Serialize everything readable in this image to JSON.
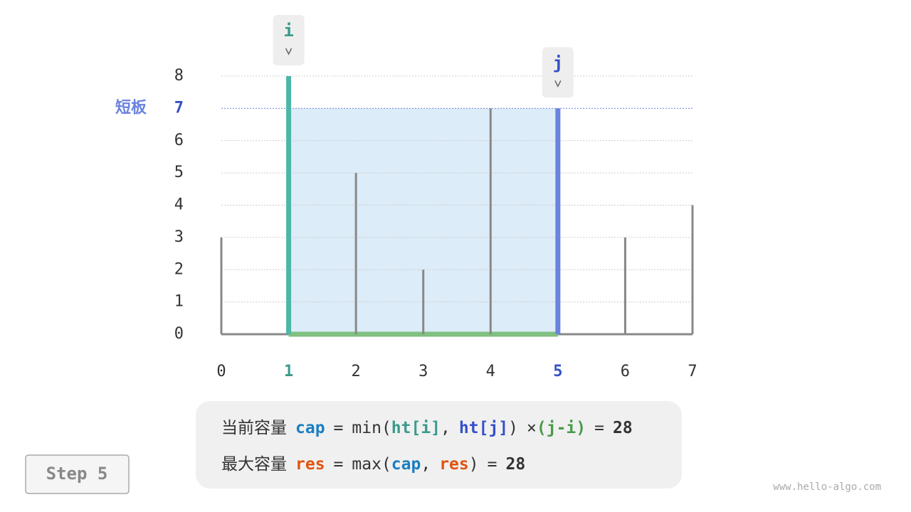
{
  "chart": {
    "xticks": [
      0,
      1,
      2,
      3,
      4,
      5,
      6,
      7
    ],
    "yticks": [
      0,
      1,
      2,
      3,
      4,
      5,
      6,
      7,
      8
    ],
    "xlim": [
      0,
      7
    ],
    "ylim": [
      0,
      8
    ],
    "heights": [
      3,
      8,
      5,
      2,
      7,
      7,
      3,
      4
    ],
    "pointers": [
      {
        "label": "i",
        "index": 1,
        "color": "#3a9a8c",
        "bar_color": "#4db6a8"
      },
      {
        "label": "j",
        "index": 5,
        "color": "#3550c8",
        "bar_color": "#6b82de"
      }
    ],
    "short_board": {
      "label": "短板",
      "value": 7,
      "color": "#6b82de"
    }
  },
  "formula": {
    "lines": [
      [
        {
          "text": "当前容量",
          "color": "#333"
        },
        {
          "text": "cap",
          "color": "#1b7ec2",
          "bold": true
        },
        {
          "text": "=",
          "color": "#333"
        },
        {
          "text": "min(",
          "color": "#333"
        },
        {
          "text": "ht[i]",
          "color": "#3a9a8c",
          "bold": true
        },
        {
          "text": ",",
          "color": "#333"
        },
        {
          "text": "ht[j]",
          "color": "#3550c8",
          "bold": true
        },
        {
          "text": ")",
          "color": "#333"
        },
        {
          "text": "×",
          "color": "#333"
        },
        {
          "text": "(j-i)",
          "color": "#4a9a4a",
          "bold": true
        },
        {
          "text": "=",
          "color": "#333"
        },
        {
          "text": 28,
          "color": "#333",
          "bold": true
        }
      ],
      [
        {
          "text": "最大容量",
          "color": "#333"
        },
        {
          "text": "res",
          "color": "#e0540f",
          "bold": true
        },
        {
          "text": "=",
          "color": "#333"
        },
        {
          "text": "max(",
          "color": "#333"
        },
        {
          "text": "cap",
          "color": "#1b7ec2",
          "bold": true
        },
        {
          "text": ",",
          "color": "#333"
        },
        {
          "text": "res",
          "color": "#e0540f",
          "bold": true
        },
        {
          "text": ")",
          "color": "#333"
        },
        {
          "text": "=",
          "color": "#333"
        },
        {
          "text": 28,
          "color": "#333",
          "bold": true
        }
      ]
    ]
  },
  "step": "Step 5",
  "watermark": "www.hello-algo.com"
}
